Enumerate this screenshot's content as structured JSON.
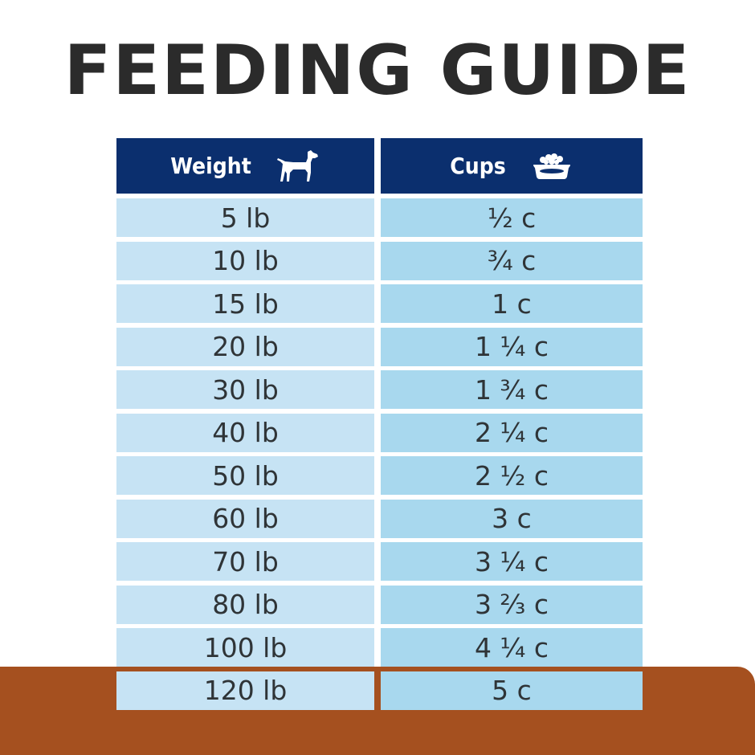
{
  "title": "FEEDING GUIDE",
  "header": {
    "weight_label": "Weight",
    "cups_label": "Cups",
    "weight_icon": "dog-icon",
    "cups_icon": "food-bowl-icon"
  },
  "rows": [
    {
      "weight": "5 lb",
      "cups": "½ c"
    },
    {
      "weight": "10 lb",
      "cups": "¾ c"
    },
    {
      "weight": "15 lb",
      "cups": "1 c"
    },
    {
      "weight": "20 lb",
      "cups": "1 ¼ c"
    },
    {
      "weight": "30 lb",
      "cups": "1 ¾  c"
    },
    {
      "weight": "40 lb",
      "cups": "2 ¼ c"
    },
    {
      "weight": "50 lb",
      "cups": "2 ½ c"
    },
    {
      "weight": "60 lb",
      "cups": "3 c"
    },
    {
      "weight": "70 lb",
      "cups": "3 ¼ c"
    },
    {
      "weight": "80 lb",
      "cups": "3 ⅔ c"
    },
    {
      "weight": "100 lb",
      "cups": "4 ¼ c"
    },
    {
      "weight": "120 lb",
      "cups": "5 c"
    }
  ],
  "colors": {
    "header_bg": "#0b2f6e",
    "weight_cell_bg": "#c6e3f4",
    "cups_cell_bg": "#a8d8ee",
    "floor": "#a5501f",
    "title_text": "#2b2b2b"
  }
}
